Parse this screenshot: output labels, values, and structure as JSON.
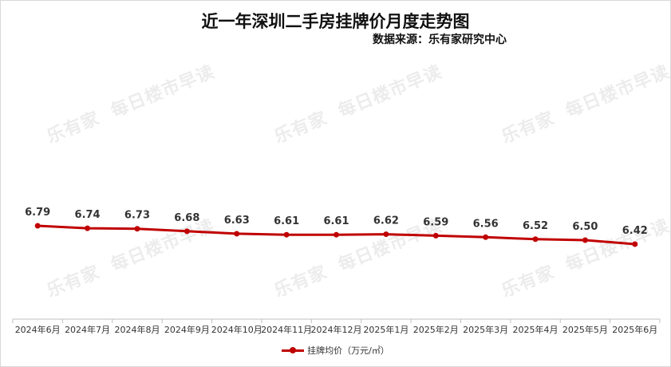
{
  "title": "近一年深圳二手房挂牌价月度走势图",
  "subtitle": "数据来源：乐有家研究中心",
  "watermark": {
    "logo": "乐有家",
    "text": "每日楼市早读"
  },
  "colors": {
    "series": "#c00000",
    "axis": "#bfbfbf",
    "tick_text": "#333333",
    "label_text": "#333333",
    "watermark": "#c8c8c8"
  },
  "chart_data": {
    "type": "line",
    "title": "近一年深圳二手房挂牌价月度走势图",
    "subtitle": "数据来源：乐有家研究中心",
    "categories": [
      "2024年6月",
      "2024年7月",
      "2024年8月",
      "2024年9月",
      "2024年10月",
      "2024年11月",
      "2024年12月",
      "2025年1月",
      "2025年2月",
      "2025年3月",
      "2025年4月",
      "2025年5月",
      "2025年6月"
    ],
    "series": [
      {
        "name": "挂牌均价（万元/㎡）",
        "values": [
          6.79,
          6.74,
          6.73,
          6.68,
          6.63,
          6.61,
          6.61,
          6.62,
          6.59,
          6.56,
          6.52,
          6.5,
          6.42
        ],
        "labels": [
          "6.79",
          "6.74",
          "6.73",
          "6.68",
          "6.63",
          "6.61",
          "6.61",
          "6.62",
          "6.59",
          "6.56",
          "6.52",
          "6.50",
          "6.42"
        ]
      }
    ],
    "xlabel": "",
    "ylabel": "",
    "y_axis_visible": false,
    "grid": false,
    "legend_position": "bottom"
  }
}
